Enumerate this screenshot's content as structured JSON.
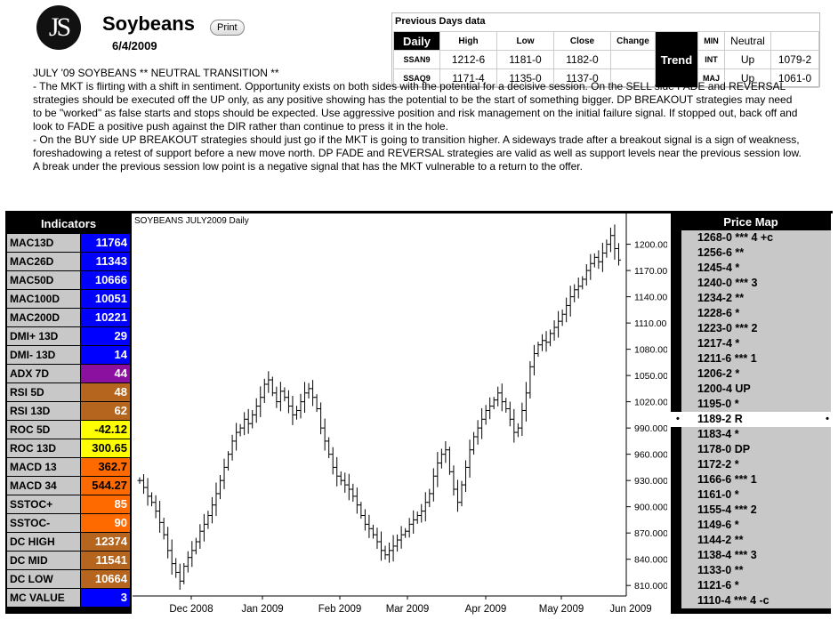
{
  "header": {
    "logo_text": "JS",
    "title": "Soybeans",
    "print_label": "Print",
    "date": "6/4/2009"
  },
  "prev_days": {
    "title": "Previous Days data",
    "daily_label": "Daily",
    "columns": [
      "High",
      "Low",
      "Close",
      "Change"
    ],
    "rows": [
      {
        "symbol": "SSAN9",
        "high": "1212-6",
        "low": "1181-0",
        "close": "1182-0",
        "change": ""
      },
      {
        "symbol": "SSAQ9",
        "high": "1171-4",
        "low": "1135-0",
        "close": "1137-0",
        "change": ""
      }
    ],
    "trend_label": "Trend",
    "trend": [
      {
        "label": "MIN",
        "value": "Neutral",
        "level": ""
      },
      {
        "label": "INT",
        "value": "Up",
        "level": "1079-2"
      },
      {
        "label": "MAJ",
        "value": "Up",
        "level": "1061-0"
      }
    ]
  },
  "commentary": {
    "heading": "JULY '09 SOYBEANS ** NEUTRAL TRANSITION **",
    "para1": "- The MKT is flirting with a shift in sentiment. Opportunity exists on both sides with the potential for a decisive session. On the SELL side FADE and REVERSAL strategies should be executed off the UP only, as any positive showing has the potential to be the start of something bigger. DP BREAKOUT strategies may need to be \"worked\" as false starts and stops should be expected. Use aggressive position and risk management on the initial failure signal. If stopped out, back off and look to FADE a positive push against the DIR rather than continue to press it in the hole.",
    "para2": "- On the BUY side UP BREAKOUT strategies should just go if the MKT is going to transition higher. A sideways trade after a breakout signal is a sign of weakness, foreshadowing a retest of support before a new move north. DP FADE and REVERSAL strategies are valid as well as support levels near the previous session low. A break under the previous session low point is a negative signal that has the MKT vulnerable to a return to the offer."
  },
  "indicators": {
    "title": "Indicators",
    "rows": [
      {
        "label": "MAC13D",
        "value": "11764",
        "bg": "#0000ff",
        "fg": "#ffffff"
      },
      {
        "label": "MAC26D",
        "value": "11343",
        "bg": "#0000ff",
        "fg": "#ffffff"
      },
      {
        "label": "MAC50D",
        "value": "10666",
        "bg": "#0000ff",
        "fg": "#ffffff"
      },
      {
        "label": "MAC100D",
        "value": "10051",
        "bg": "#0000ff",
        "fg": "#ffffff"
      },
      {
        "label": "MAC200D",
        "value": "10221",
        "bg": "#0000ff",
        "fg": "#ffffff"
      },
      {
        "label": "DMI+ 13D",
        "value": "29",
        "bg": "#0000ff",
        "fg": "#ffffff"
      },
      {
        "label": "DMI- 13D",
        "value": "14",
        "bg": "#0000ff",
        "fg": "#ffffff"
      },
      {
        "label": "ADX 7D",
        "value": "44",
        "bg": "#8b10a0",
        "fg": "#ffffff"
      },
      {
        "label": "RSI 5D",
        "value": "48",
        "bg": "#b5651d",
        "fg": "#ffffff"
      },
      {
        "label": "RSI 13D",
        "value": "62",
        "bg": "#b5651d",
        "fg": "#ffffff"
      },
      {
        "label": "ROC 5D",
        "value": "-42.12",
        "bg": "#ffff00",
        "fg": "#000000"
      },
      {
        "label": "ROC 13D",
        "value": "300.65",
        "bg": "#ffff00",
        "fg": "#000000"
      },
      {
        "label": "MACD 13",
        "value": "362.7",
        "bg": "#ff6a00",
        "fg": "#000000"
      },
      {
        "label": "MACD 34",
        "value": "544.27",
        "bg": "#ff6a00",
        "fg": "#000000"
      },
      {
        "label": "SSTOC+",
        "value": "85",
        "bg": "#ff6a00",
        "fg": "#ffffff"
      },
      {
        "label": "SSTOC-",
        "value": "90",
        "bg": "#ff6a00",
        "fg": "#ffffff"
      },
      {
        "label": "DC HIGH",
        "value": "12374",
        "bg": "#b5651d",
        "fg": "#ffffff"
      },
      {
        "label": "DC MID",
        "value": "11541",
        "bg": "#b5651d",
        "fg": "#ffffff"
      },
      {
        "label": "DC LOW",
        "value": "10664",
        "bg": "#b5651d",
        "fg": "#ffffff"
      },
      {
        "label": "MC VALUE",
        "value": "3",
        "bg": "#0000ff",
        "fg": "#ffffff"
      }
    ]
  },
  "chart_data": {
    "type": "ohlc",
    "title": "SOYBEANS JULY2009 Daily",
    "y_ticks": [
      "1200.00",
      "1170.00",
      "1140.00",
      "1110.00",
      "1080.00",
      "1050.00",
      "1020.00",
      "990.000",
      "960.000",
      "930.000",
      "900.000",
      "870.000",
      "840.000",
      "810.000"
    ],
    "ylim": [
      798,
      1225
    ],
    "x_ticks": [
      "Dec 2008",
      "Jan 2009",
      "Feb 2009",
      "Mar 2009",
      "Apr 2009",
      "May 2009",
      "Jun 2009"
    ],
    "closes": [
      930,
      922,
      912,
      905,
      895,
      882,
      868,
      850,
      835,
      825,
      815,
      832,
      842,
      850,
      860,
      872,
      880,
      890,
      902,
      915,
      930,
      945,
      960,
      975,
      985,
      990,
      1000,
      995,
      1005,
      1015,
      1025,
      1040,
      1045,
      1030,
      1020,
      1032,
      1025,
      1015,
      1005,
      1010,
      1020,
      1030,
      1035,
      1025,
      1012,
      990,
      975,
      960,
      945,
      935,
      930,
      925,
      920,
      912,
      902,
      890,
      880,
      875,
      868,
      860,
      850,
      845,
      850,
      855,
      862,
      868,
      872,
      880,
      885,
      890,
      895,
      905,
      915,
      935,
      950,
      960,
      965,
      940,
      920,
      905,
      925,
      945,
      965,
      980,
      990,
      1000,
      1010,
      1015,
      1022,
      1030,
      1020,
      1012,
      1000,
      985,
      990,
      1010,
      1030,
      1060,
      1075,
      1085,
      1090,
      1088,
      1098,
      1105,
      1112,
      1120,
      1130,
      1140,
      1148,
      1152,
      1160,
      1170,
      1178,
      1185,
      1180,
      1190,
      1200,
      1210,
      1195,
      1182
    ]
  },
  "price_map": {
    "title": "Price Map",
    "levels": [
      "1268-0 *** 4 +c",
      "1256-6 **",
      "1245-4 *",
      "1240-0 *** 3",
      "1234-2 **",
      "1228-6 *",
      "1223-0 *** 2",
      "1217-4 *",
      "1211-6 *** 1",
      "1206-2 *",
      "1200-4 UP",
      "1195-0 *",
      "1189-2 R",
      "1183-4 *",
      "1178-0 DP",
      "1172-2 *",
      "1166-6 *** 1",
      "1161-0 *",
      "1155-4 *** 2",
      "1149-6 *",
      "1144-2 **",
      "1138-4 *** 3",
      "1133-0 **",
      "1121-6 *",
      "1110-4 *** 4 -c"
    ],
    "current": "1189-2 R"
  }
}
